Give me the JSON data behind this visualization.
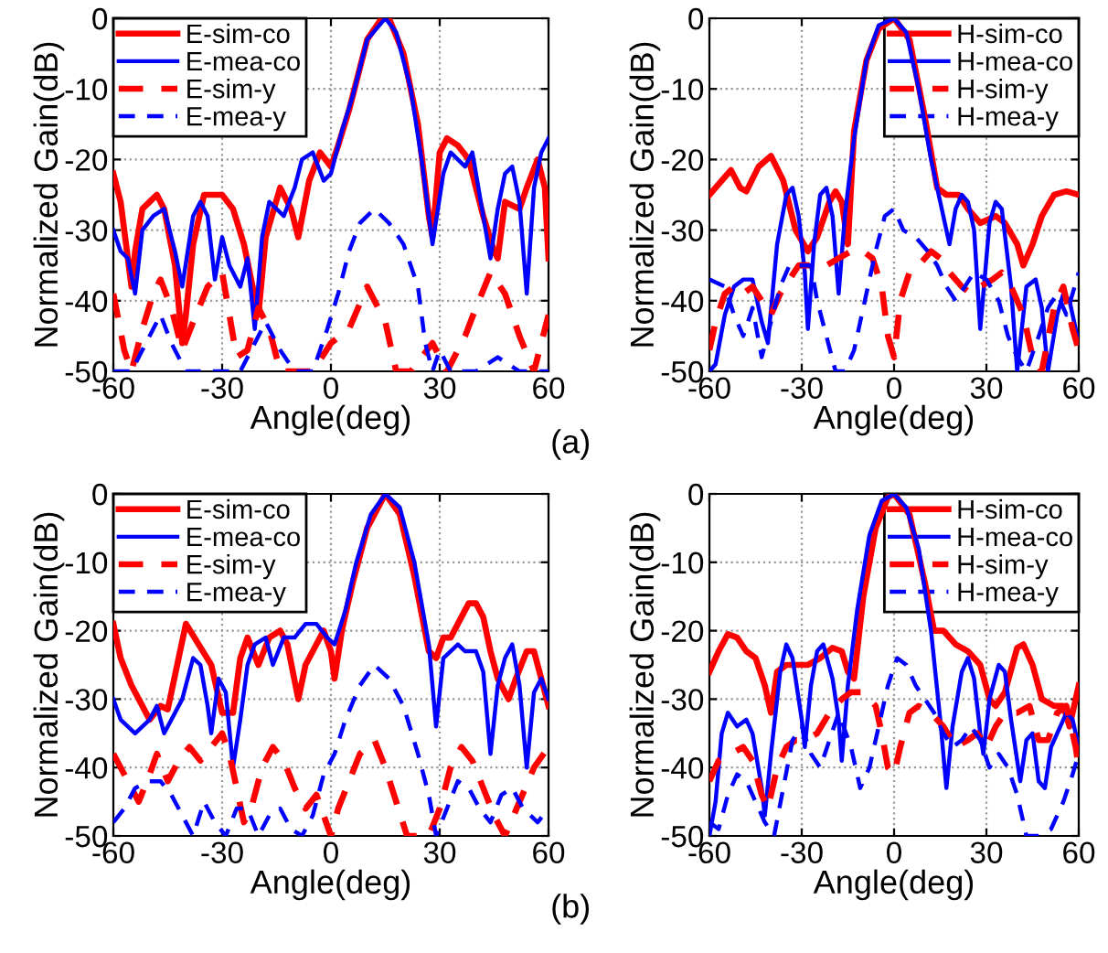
{
  "chart_data": [
    {
      "type": "line",
      "xlabel": "Angle(deg)",
      "ylabel": "Normalized Gain(dB)",
      "xlim": [
        -60,
        60
      ],
      "xticks": [
        -60,
        -30,
        0,
        30,
        60
      ],
      "ylim": [
        -50,
        0
      ],
      "yticks": [
        -50,
        -40,
        -30,
        -20,
        -10,
        0
      ],
      "grid": true,
      "legend": "top left",
      "annotations": [
        "(a)"
      ],
      "series": [
        {
          "name": "E-sim-co",
          "color": "#ff0000",
          "line_style": "solid",
          "x": [
            -60,
            -58,
            -55,
            -54,
            -52,
            -48,
            -46,
            -43,
            -41,
            -40,
            -38,
            -35,
            -30,
            -27,
            -24,
            -22,
            -20,
            -18,
            -14,
            -11,
            -9,
            -6,
            -3,
            0,
            2,
            5,
            10,
            14,
            16,
            20,
            24,
            27,
            28,
            30,
            32,
            35,
            38,
            42,
            45,
            46,
            48,
            52,
            54,
            57,
            59,
            60
          ],
          "values": [
            -22,
            -26,
            -38,
            -33,
            -27,
            -25,
            -27,
            -35,
            -46,
            -42,
            -32,
            -25,
            -25,
            -27,
            -32,
            -37,
            -42,
            -31,
            -24,
            -27,
            -31,
            -23,
            -19,
            -21,
            -18,
            -13,
            -3,
            0,
            0,
            -5,
            -15,
            -28,
            -31,
            -19,
            -17,
            -18,
            -20,
            -28,
            -33,
            -34,
            -26,
            -27,
            -24,
            -20,
            -24,
            -34
          ]
        },
        {
          "name": "E-mea-co",
          "color": "#0000ff",
          "line_style": "solid",
          "x": [
            -60,
            -58,
            -56,
            -54,
            -52,
            -49,
            -46,
            -43,
            -41,
            -38,
            -36,
            -34,
            -32,
            -30,
            -28,
            -25,
            -23,
            -21,
            -19,
            -17,
            -13,
            -10,
            -8,
            -5,
            -2,
            0,
            3,
            6,
            10,
            15,
            18,
            22,
            25,
            28,
            31,
            33,
            35,
            37,
            39,
            42,
            44,
            46,
            48,
            50,
            52,
            54,
            56,
            58,
            60
          ],
          "values": [
            -30,
            -33,
            -34,
            -39,
            -30,
            -28,
            -27,
            -33,
            -38,
            -28,
            -26,
            -28,
            -37,
            -31,
            -35,
            -38,
            -34,
            -44,
            -31,
            -26,
            -28,
            -24,
            -20,
            -19,
            -23,
            -22,
            -16,
            -11,
            -3,
            0,
            -2,
            -10,
            -20,
            -32,
            -22,
            -19,
            -20,
            -21,
            -19,
            -28,
            -34,
            -27,
            -22,
            -21,
            -26,
            -39,
            -24,
            -19,
            -17
          ]
        },
        {
          "name": "E-sim-y",
          "color": "#ff0000",
          "line_style": "dashed",
          "x": [
            -60,
            -57,
            -55,
            -52,
            -49,
            -47,
            -44,
            -41,
            -38,
            -34,
            -30,
            -28,
            -26,
            -23,
            -20,
            -17,
            -14,
            -10,
            -5,
            0,
            5,
            10,
            15,
            18,
            22,
            28,
            32,
            37,
            40,
            44,
            48,
            52,
            56,
            60
          ],
          "values": [
            -39,
            -47,
            -50,
            -44,
            -39,
            -37,
            -41,
            -47,
            -43,
            -38,
            -36,
            -42,
            -48,
            -47,
            -41,
            -44,
            -50,
            -50,
            -50,
            -46,
            -44,
            -38,
            -43,
            -50,
            -50,
            -46,
            -50,
            -45,
            -41,
            -36,
            -39,
            -45,
            -50,
            -42
          ]
        },
        {
          "name": "E-mea-y",
          "color": "#0000ff",
          "line_style": "dashed",
          "x": [
            -60,
            -55,
            -52,
            -47,
            -44,
            -40,
            -30,
            -25,
            -21,
            -18,
            -14,
            -10,
            -5,
            -1,
            2,
            5,
            8,
            12,
            16,
            20,
            24,
            26,
            28,
            30,
            33,
            40,
            46,
            52,
            60
          ],
          "values": [
            -50,
            -50,
            -47,
            -42,
            -46,
            -50,
            -50,
            -50,
            -46,
            -43,
            -47,
            -50,
            -50,
            -44,
            -39,
            -33,
            -29,
            -27,
            -29,
            -32,
            -38,
            -46,
            -50,
            -47,
            -50,
            -50,
            -48,
            -50,
            -50
          ]
        }
      ]
    },
    {
      "type": "line",
      "xlabel": "Angle(deg)",
      "ylabel": "Normalized Gain(dB)",
      "xlim": [
        -60,
        60
      ],
      "xticks": [
        -60,
        -30,
        0,
        30,
        60
      ],
      "ylim": [
        -50,
        0
      ],
      "yticks": [
        -50,
        -40,
        -30,
        -20,
        -10,
        0
      ],
      "grid": true,
      "legend": "top right",
      "series": [
        {
          "name": "H-sim-co",
          "color": "#ff0000",
          "line_style": "solid",
          "x": [
            -60,
            -56,
            -53,
            -50,
            -48,
            -44,
            -40,
            -36,
            -32,
            -28,
            -25,
            -21,
            -19,
            -17,
            -15,
            -13,
            -9,
            -5,
            0,
            5,
            10,
            14,
            17,
            21,
            24,
            28,
            33,
            36,
            40,
            42,
            45,
            48,
            52,
            56,
            60
          ],
          "values": [
            -25,
            -23,
            -21.5,
            -24,
            -24.5,
            -21,
            -19.5,
            -23,
            -30,
            -33,
            -31,
            -26,
            -24.5,
            -26,
            -32,
            -16,
            -6,
            -1.5,
            0,
            -3,
            -14,
            -24,
            -25,
            -25,
            -27,
            -29,
            -28,
            -29,
            -32,
            -35,
            -32,
            -28,
            -25,
            -24.5,
            -25
          ]
        },
        {
          "name": "H-mea-co",
          "color": "#0000ff",
          "line_style": "solid",
          "x": [
            -60,
            -58,
            -55,
            -52,
            -49,
            -46,
            -43,
            -41,
            -38,
            -35,
            -33,
            -31,
            -29,
            -28,
            -26,
            -24,
            -22,
            -20,
            -18,
            -16,
            -13,
            -9,
            -5,
            0,
            4,
            8,
            12,
            16,
            18,
            20,
            22,
            24,
            26,
            28,
            31,
            33,
            35,
            38,
            40,
            43,
            46,
            48,
            50,
            53,
            55,
            57,
            60
          ],
          "values": [
            -50,
            -49,
            -42,
            -38,
            -37,
            -37,
            -43,
            -46,
            -32,
            -25,
            -24,
            -28,
            -36,
            -44,
            -32,
            -25,
            -24,
            -28,
            -39,
            -28,
            -17,
            -6,
            -1,
            0,
            -2,
            -10,
            -20,
            -28,
            -32,
            -27,
            -25,
            -26,
            -30,
            -44,
            -29,
            -26,
            -27,
            -38,
            -50,
            -38,
            -37,
            -41,
            -50,
            -42,
            -39,
            -40,
            -46
          ]
        },
        {
          "name": "H-sim-y",
          "color": "#ff0000",
          "line_style": "dashed",
          "x": [
            -60,
            -58,
            -55,
            -52,
            -49,
            -46,
            -43,
            -40,
            -37,
            -34,
            -31,
            -27,
            -22,
            -18,
            -14,
            -10,
            -7,
            -4,
            -2,
            0,
            2,
            5,
            8,
            12,
            15,
            18,
            22,
            25,
            28,
            32,
            35,
            38,
            42,
            45,
            48,
            52,
            55,
            58,
            60
          ],
          "values": [
            -47,
            -43,
            -39,
            -38,
            -39,
            -38,
            -40,
            -42,
            -39,
            -37,
            -35,
            -35,
            -35,
            -34,
            -33,
            -33,
            -34,
            -38,
            -45,
            -48,
            -40,
            -36,
            -35,
            -33,
            -34,
            -36,
            -38,
            -39,
            -38,
            -37,
            -36,
            -38,
            -42,
            -48,
            -50,
            -41,
            -38,
            -44,
            -47
          ]
        },
        {
          "name": "H-mea-y",
          "color": "#0000ff",
          "line_style": "dashed",
          "x": [
            -60,
            -55,
            -52,
            -49,
            -46,
            -43,
            -40,
            -37,
            -34,
            -30,
            -27,
            -25,
            -22,
            -19,
            -16,
            -13,
            -10,
            -6,
            -3,
            0,
            3,
            7,
            11,
            14,
            17,
            20,
            23,
            26,
            30,
            34,
            37,
            40,
            43,
            47,
            50,
            53,
            56,
            60
          ],
          "values": [
            -37,
            -38,
            -42,
            -45,
            -41,
            -48,
            -43,
            -38,
            -35,
            -35,
            -35,
            -40,
            -45,
            -50,
            -50,
            -47,
            -41,
            -33,
            -28,
            -27,
            -30,
            -31,
            -33,
            -35,
            -38,
            -40,
            -38,
            -36,
            -37,
            -40,
            -45,
            -48,
            -50,
            -45,
            -41,
            -39,
            -42,
            -36
          ]
        }
      ]
    },
    {
      "type": "line",
      "xlabel": "Angle(deg)",
      "ylabel": "Normalized Gain(dB)",
      "xlim": [
        -60,
        60
      ],
      "xticks": [
        -60,
        -30,
        0,
        30,
        60
      ],
      "ylim": [
        -50,
        0
      ],
      "yticks": [
        -50,
        -40,
        -30,
        -20,
        -10,
        0
      ],
      "grid": true,
      "legend": "top left",
      "annotations": [
        "(b)"
      ],
      "series": [
        {
          "name": "E-sim-co",
          "color": "#ff0000",
          "line_style": "solid",
          "x": [
            -60,
            -58,
            -55,
            -50,
            -47,
            -45,
            -40,
            -33,
            -30,
            -27,
            -25,
            -23,
            -20,
            -17,
            -14,
            -12,
            -9,
            -7,
            -4,
            -2,
            0,
            1,
            3,
            6,
            10,
            15,
            19,
            23,
            27,
            29,
            31,
            33,
            35,
            38,
            40,
            42,
            44,
            46,
            49,
            51,
            54,
            56,
            58,
            60
          ],
          "values": [
            -19,
            -24,
            -28,
            -33,
            -31,
            -31.5,
            -19,
            -25,
            -32,
            -32,
            -24,
            -21,
            -25,
            -21,
            -20,
            -22,
            -30,
            -25,
            -22,
            -20,
            -23,
            -27,
            -20,
            -13,
            -5,
            0,
            -3,
            -12,
            -23,
            -24,
            -21,
            -21,
            -19,
            -16,
            -16,
            -18,
            -23,
            -27,
            -30,
            -27,
            -23,
            -23,
            -27,
            -31
          ]
        },
        {
          "name": "E-mea-co",
          "color": "#0000ff",
          "line_style": "solid",
          "x": [
            -60,
            -58,
            -56,
            -54,
            -52,
            -50,
            -48,
            -46,
            -44,
            -41,
            -38,
            -36,
            -34,
            -33,
            -31,
            -29,
            -27,
            -25,
            -23,
            -21,
            -18,
            -16,
            -13,
            -10,
            -7,
            -4,
            -1,
            1,
            4,
            7,
            11,
            15,
            19,
            23,
            27,
            29,
            31,
            33,
            35,
            37,
            40,
            42,
            44,
            46,
            48,
            50,
            52,
            54,
            56,
            58,
            60
          ],
          "values": [
            -30,
            -33,
            -34,
            -35,
            -34,
            -33,
            -31,
            -35,
            -33,
            -30,
            -24,
            -25,
            -31,
            -35,
            -27,
            -29,
            -40,
            -33,
            -25,
            -22,
            -21,
            -25,
            -21,
            -21,
            -19,
            -19,
            -21,
            -22,
            -17,
            -10,
            -3,
            0,
            -2,
            -10,
            -22,
            -34,
            -24,
            -23,
            -22,
            -23,
            -23,
            -26,
            -38,
            -28,
            -24,
            -22,
            -28,
            -40,
            -29,
            -27,
            -30
          ]
        },
        {
          "name": "E-sim-y",
          "color": "#ff0000",
          "line_style": "dashed",
          "x": [
            -60,
            -56,
            -53,
            -50,
            -48,
            -45,
            -42,
            -39,
            -36,
            -33,
            -30,
            -28,
            -26,
            -24,
            -22,
            -19,
            -16,
            -13,
            -10,
            -7,
            -4,
            -2,
            0,
            2,
            5,
            8,
            12,
            15,
            18,
            21,
            27,
            30,
            33,
            36,
            39,
            42,
            45,
            48,
            52,
            56,
            60
          ],
          "values": [
            -38,
            -42,
            -45,
            -41,
            -38,
            -42,
            -39,
            -37,
            -39,
            -37,
            -35,
            -38,
            -43,
            -48,
            -46,
            -40,
            -37,
            -39,
            -43,
            -46,
            -44,
            -47,
            -50,
            -46,
            -42,
            -38,
            -36,
            -40,
            -45,
            -50,
            -50,
            -46,
            -40,
            -37,
            -39,
            -43,
            -47,
            -50,
            -45,
            -40,
            -37
          ]
        },
        {
          "name": "E-mea-y",
          "color": "#0000ff",
          "line_style": "dashed",
          "x": [
            -60,
            -57,
            -54,
            -50,
            -47,
            -44,
            -41,
            -38,
            -35,
            -32,
            -29,
            -26,
            -23,
            -20,
            -17,
            -14,
            -11,
            -8,
            -5,
            -2,
            1,
            4,
            8,
            12,
            16,
            20,
            24,
            27,
            29,
            32,
            35,
            38,
            41,
            44,
            47,
            50,
            53,
            57,
            60
          ],
          "values": [
            -48,
            -46,
            -43,
            -42,
            -42,
            -44,
            -47,
            -50,
            -45,
            -48,
            -50,
            -46,
            -46,
            -50,
            -47,
            -46,
            -49,
            -50,
            -47,
            -41,
            -38,
            -33,
            -28,
            -25,
            -27,
            -31,
            -38,
            -44,
            -50,
            -46,
            -42,
            -43,
            -46,
            -48,
            -44,
            -43,
            -46,
            -48,
            -46
          ]
        }
      ]
    },
    {
      "type": "line",
      "xlabel": "Angle(deg)",
      "ylabel": "Normalized Gain(dB)",
      "xlim": [
        -60,
        60
      ],
      "xticks": [
        -60,
        -30,
        0,
        30,
        60
      ],
      "ylim": [
        -50,
        0
      ],
      "yticks": [
        -50,
        -40,
        -30,
        -20,
        -10,
        0
      ],
      "grid": true,
      "legend": "top right",
      "series": [
        {
          "name": "H-sim-co",
          "color": "#ff0000",
          "line_style": "solid",
          "x": [
            -60,
            -57,
            -54,
            -51,
            -48,
            -45,
            -42,
            -40,
            -38,
            -35,
            -31,
            -28,
            -24,
            -20,
            -17,
            -15,
            -13,
            -10,
            -6,
            -2,
            0,
            5,
            10,
            13,
            16,
            20,
            24,
            28,
            31,
            33,
            36,
            40,
            42,
            45,
            48,
            52,
            55,
            57,
            60
          ],
          "values": [
            -26,
            -23,
            -20.5,
            -21,
            -23,
            -24,
            -28,
            -32,
            -26,
            -25,
            -25,
            -25,
            -24,
            -22.5,
            -23,
            -26,
            -27,
            -15,
            -5,
            -0.5,
            0,
            -3,
            -13,
            -20,
            -20,
            -22,
            -23,
            -25,
            -30,
            -31,
            -29,
            -22.5,
            -22,
            -25,
            -30,
            -31,
            -31,
            -34,
            -28
          ]
        },
        {
          "name": "H-mea-co",
          "color": "#0000ff",
          "line_style": "solid",
          "x": [
            -60,
            -58,
            -56,
            -54,
            -51,
            -48,
            -46,
            -43,
            -42,
            -40,
            -37,
            -35,
            -33,
            -30,
            -29,
            -27,
            -25,
            -23,
            -20,
            -18,
            -17,
            -15,
            -12,
            -8,
            -4,
            0,
            4,
            8,
            12,
            15,
            17,
            19,
            22,
            24,
            26,
            28,
            29,
            31,
            34,
            36,
            38,
            41,
            43,
            45,
            47,
            49,
            51,
            54,
            56,
            58,
            60
          ],
          "values": [
            -50,
            -45,
            -35,
            -32,
            -34,
            -33,
            -35,
            -43,
            -47,
            -38,
            -26,
            -22,
            -24,
            -33,
            -37,
            -28,
            -23,
            -22,
            -27,
            -33,
            -39,
            -28,
            -17,
            -6,
            -1,
            0,
            -2,
            -8,
            -20,
            -33,
            -43,
            -34,
            -26,
            -24,
            -27,
            -35,
            -38,
            -30,
            -25,
            -26,
            -33,
            -42,
            -36,
            -35,
            -42,
            -43,
            -37,
            -34,
            -32,
            -33,
            -37
          ]
        },
        {
          "name": "H-sim-y",
          "color": "#ff0000",
          "line_style": "dashed",
          "x": [
            -60,
            -57,
            -53,
            -49,
            -46,
            -43,
            -41,
            -38,
            -35,
            -32,
            -29,
            -25,
            -21,
            -17,
            -14,
            -10,
            -6,
            -4,
            -2,
            0,
            2,
            5,
            8,
            12,
            16,
            20,
            24,
            27,
            30,
            33,
            36,
            40,
            44,
            47,
            50,
            53,
            56,
            59,
            60
          ],
          "values": [
            -42,
            -39,
            -38,
            -37,
            -39,
            -44,
            -46,
            -40,
            -37,
            -36,
            -36,
            -35,
            -32,
            -30,
            -29,
            -29,
            -31,
            -35,
            -40,
            -41,
            -37,
            -32,
            -31,
            -32,
            -34,
            -37,
            -36,
            -35,
            -37,
            -34,
            -32,
            -32,
            -31,
            -36,
            -36,
            -32,
            -31,
            -37,
            -40
          ]
        },
        {
          "name": "H-mea-y",
          "color": "#0000ff",
          "line_style": "dashed",
          "x": [
            -60,
            -57,
            -54,
            -51,
            -48,
            -45,
            -42,
            -39,
            -36,
            -33,
            -30,
            -27,
            -24,
            -21,
            -18,
            -14,
            -11,
            -8,
            -5,
            -2,
            1,
            4,
            7,
            10,
            13,
            16,
            19,
            22,
            25,
            28,
            31,
            34,
            37,
            40,
            43,
            47,
            51,
            55,
            58,
            60
          ],
          "values": [
            -48,
            -49,
            -44,
            -41,
            -42,
            -45,
            -48,
            -50,
            -43,
            -36,
            -34,
            -38,
            -40,
            -36,
            -32,
            -37,
            -43,
            -40,
            -34,
            -28,
            -24,
            -25,
            -28,
            -30,
            -32,
            -35,
            -37,
            -36,
            -34,
            -36,
            -40,
            -38,
            -40,
            -44,
            -50,
            -50,
            -49,
            -45,
            -41,
            -38
          ]
        }
      ]
    }
  ]
}
